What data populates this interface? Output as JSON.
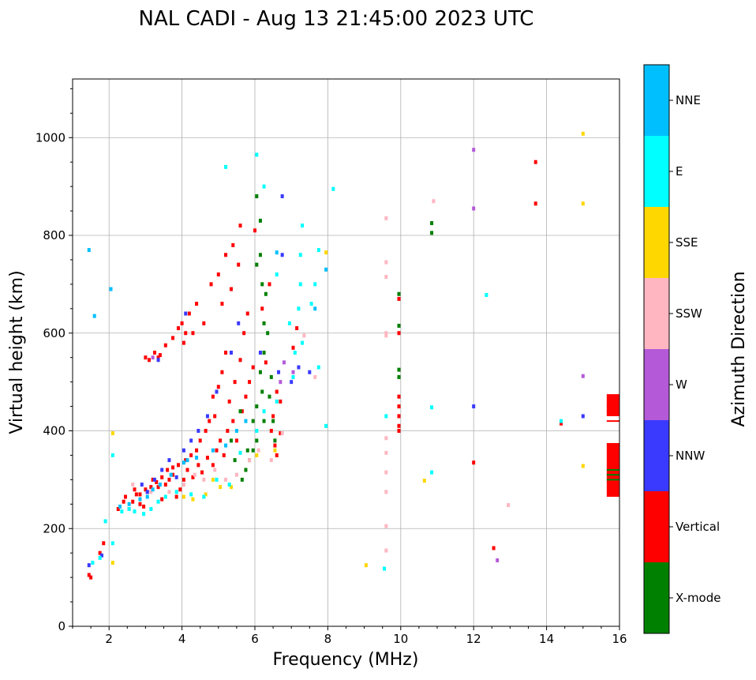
{
  "chart_data": {
    "type": "scatter",
    "title": "NAL CADI - Aug 13 21:45:00 2023 UTC",
    "xlabel": "Frequency (MHz)",
    "ylabel": "Virtual height (km)",
    "xlim": [
      1,
      16
    ],
    "ylim": [
      0,
      1120
    ],
    "x_ticks": [
      2,
      4,
      6,
      8,
      10,
      12,
      14,
      16
    ],
    "y_ticks": [
      0,
      200,
      400,
      600,
      800,
      1000
    ],
    "grid": true,
    "colorbar": {
      "label": "Azimuth Direction",
      "categories": [
        {
          "name": "X-mode",
          "color": "#008000"
        },
        {
          "name": "Vertical",
          "color": "#ff0000"
        },
        {
          "name": "NNW",
          "color": "#3a3aff"
        },
        {
          "name": "W",
          "color": "#b45ad8"
        },
        {
          "name": "SSW",
          "color": "#ffb6c1"
        },
        {
          "name": "SSE",
          "color": "#ffd700"
        },
        {
          "name": "E",
          "color": "#00ffff"
        },
        {
          "name": "NNE",
          "color": "#00bfff"
        }
      ]
    },
    "series": [
      {
        "name": "Vertical",
        "color": "#ff0000",
        "points": [
          [
            1.45,
            105
          ],
          [
            1.5,
            100
          ],
          [
            1.75,
            150
          ],
          [
            1.85,
            170
          ],
          [
            2.25,
            240
          ],
          [
            2.4,
            255
          ],
          [
            2.45,
            265
          ],
          [
            2.55,
            240
          ],
          [
            2.65,
            255
          ],
          [
            2.75,
            270
          ],
          [
            2.85,
            250
          ],
          [
            2.95,
            245
          ],
          [
            3.05,
            275
          ],
          [
            3.2,
            300
          ],
          [
            3.35,
            285
          ],
          [
            3.45,
            260
          ],
          [
            3.55,
            290
          ],
          [
            3.65,
            300
          ],
          [
            3.75,
            310
          ],
          [
            3.85,
            265
          ],
          [
            3.95,
            280
          ],
          [
            4.05,
            300
          ],
          [
            4.15,
            320
          ],
          [
            4.3,
            305
          ],
          [
            4.45,
            330
          ],
          [
            4.55,
            315
          ],
          [
            4.7,
            345
          ],
          [
            4.85,
            330
          ],
          [
            4.95,
            360
          ],
          [
            5.05,
            380
          ],
          [
            5.15,
            350
          ],
          [
            5.25,
            400
          ],
          [
            5.4,
            420
          ],
          [
            5.5,
            380
          ],
          [
            5.65,
            440
          ],
          [
            5.75,
            470
          ],
          [
            5.85,
            500
          ],
          [
            5.95,
            530
          ],
          [
            5.3,
            460
          ],
          [
            5.45,
            500
          ],
          [
            5.6,
            545
          ],
          [
            5.7,
            600
          ],
          [
            5.8,
            640
          ],
          [
            5.2,
            560
          ],
          [
            5.1,
            520
          ],
          [
            5.0,
            490
          ],
          [
            4.85,
            470
          ],
          [
            4.9,
            430
          ],
          [
            4.75,
            420
          ],
          [
            4.65,
            400
          ],
          [
            4.5,
            380
          ],
          [
            4.4,
            360
          ],
          [
            4.25,
            350
          ],
          [
            4.1,
            340
          ],
          [
            3.9,
            330
          ],
          [
            3.75,
            325
          ],
          [
            3.6,
            320
          ],
          [
            3.45,
            305
          ],
          [
            3.3,
            295
          ],
          [
            3.15,
            285
          ],
          [
            3.0,
            280
          ],
          [
            2.85,
            270
          ],
          [
            2.7,
            280
          ],
          [
            3.4,
            555
          ],
          [
            3.55,
            575
          ],
          [
            3.75,
            590
          ],
          [
            3.9,
            610
          ],
          [
            4.0,
            620
          ],
          [
            4.1,
            600
          ],
          [
            4.2,
            640
          ],
          [
            4.4,
            660
          ],
          [
            4.6,
            620
          ],
          [
            4.8,
            700
          ],
          [
            5.0,
            720
          ],
          [
            5.2,
            760
          ],
          [
            5.4,
            780
          ],
          [
            5.6,
            820
          ],
          [
            6.0,
            810
          ],
          [
            5.1,
            660
          ],
          [
            5.35,
            690
          ],
          [
            5.55,
            740
          ],
          [
            3.0,
            550
          ],
          [
            3.1,
            545
          ],
          [
            3.25,
            560
          ],
          [
            3.35,
            550
          ],
          [
            4.05,
            580
          ],
          [
            4.3,
            600
          ],
          [
            6.2,
            650
          ],
          [
            6.4,
            700
          ],
          [
            6.3,
            540
          ],
          [
            6.6,
            480
          ],
          [
            6.5,
            430
          ],
          [
            6.7,
            460
          ],
          [
            7.05,
            570
          ],
          [
            7.15,
            610
          ],
          [
            6.45,
            400
          ],
          [
            6.55,
            370
          ],
          [
            6.6,
            350
          ],
          [
            6.7,
            395
          ],
          [
            9.95,
            670
          ],
          [
            9.95,
            600
          ],
          [
            9.95,
            470
          ],
          [
            9.95,
            450
          ],
          [
            9.95,
            430
          ],
          [
            9.95,
            410
          ],
          [
            9.95,
            400
          ],
          [
            12.0,
            335
          ],
          [
            12.55,
            160
          ],
          [
            13.7,
            950
          ],
          [
            13.7,
            865
          ],
          [
            14.4,
            415
          ]
        ]
      },
      {
        "name": "X-mode",
        "color": "#008000",
        "points": [
          [
            5.65,
            300
          ],
          [
            5.75,
            320
          ],
          [
            5.85,
            340
          ],
          [
            5.95,
            360
          ],
          [
            6.05,
            380
          ],
          [
            5.95,
            420
          ],
          [
            6.05,
            450
          ],
          [
            6.2,
            480
          ],
          [
            6.15,
            520
          ],
          [
            6.25,
            560
          ],
          [
            6.25,
            620
          ],
          [
            6.3,
            680
          ],
          [
            6.2,
            700
          ],
          [
            6.05,
            740
          ],
          [
            6.15,
            760
          ],
          [
            6.35,
            600
          ],
          [
            6.5,
            420
          ],
          [
            6.55,
            380
          ],
          [
            6.15,
            830
          ],
          [
            6.05,
            880
          ],
          [
            5.6,
            440
          ],
          [
            5.35,
            380
          ],
          [
            5.45,
            340
          ],
          [
            6.4,
            470
          ],
          [
            6.25,
            420
          ],
          [
            5.8,
            360
          ],
          [
            6.45,
            510
          ],
          [
            9.95,
            525
          ],
          [
            9.95,
            510
          ],
          [
            9.95,
            615
          ],
          [
            9.95,
            680
          ],
          [
            10.85,
            825
          ],
          [
            10.85,
            805
          ]
        ]
      },
      {
        "name": "NNW",
        "color": "#3a3aff",
        "points": [
          [
            1.45,
            125
          ],
          [
            1.8,
            145
          ],
          [
            2.9,
            290
          ],
          [
            3.05,
            275
          ],
          [
            3.25,
            300
          ],
          [
            3.45,
            320
          ],
          [
            3.65,
            340
          ],
          [
            3.85,
            305
          ],
          [
            4.05,
            360
          ],
          [
            4.25,
            380
          ],
          [
            4.45,
            400
          ],
          [
            4.7,
            430
          ],
          [
            4.95,
            480
          ],
          [
            5.35,
            560
          ],
          [
            5.55,
            620
          ],
          [
            6.15,
            560
          ],
          [
            6.65,
            520
          ],
          [
            6.75,
            760
          ],
          [
            6.75,
            880
          ],
          [
            7.0,
            500
          ],
          [
            7.2,
            530
          ],
          [
            7.5,
            520
          ],
          [
            4.1,
            640
          ],
          [
            3.35,
            545
          ],
          [
            12.0,
            450
          ],
          [
            15.0,
            430
          ]
        ]
      },
      {
        "name": "W",
        "color": "#b45ad8",
        "points": [
          [
            6.7,
            500
          ],
          [
            6.8,
            540
          ],
          [
            7.05,
            520
          ],
          [
            3.2,
            550
          ],
          [
            12.0,
            975
          ],
          [
            12.0,
            855
          ],
          [
            12.65,
            135
          ],
          [
            15.0,
            512
          ]
        ]
      },
      {
        "name": "SSW",
        "color": "#ffb6c1",
        "points": [
          [
            2.65,
            290
          ],
          [
            3.15,
            275
          ],
          [
            3.65,
            275
          ],
          [
            4.05,
            290
          ],
          [
            4.35,
            310
          ],
          [
            4.6,
            300
          ],
          [
            4.9,
            320
          ],
          [
            5.2,
            300
          ],
          [
            5.5,
            310
          ],
          [
            5.85,
            340
          ],
          [
            6.1,
            360
          ],
          [
            6.45,
            340
          ],
          [
            6.75,
            395
          ],
          [
            7.35,
            595
          ],
          [
            7.65,
            510
          ],
          [
            9.6,
            835
          ],
          [
            9.6,
            745
          ],
          [
            9.6,
            715
          ],
          [
            9.6,
            600
          ],
          [
            9.6,
            595
          ],
          [
            9.6,
            385
          ],
          [
            9.6,
            355
          ],
          [
            9.6,
            315
          ],
          [
            9.6,
            275
          ],
          [
            9.6,
            205
          ],
          [
            9.6,
            155
          ],
          [
            10.9,
            870
          ],
          [
            12.95,
            248
          ]
        ]
      },
      {
        "name": "SSE",
        "color": "#ffd700",
        "points": [
          [
            2.1,
            395
          ],
          [
            2.1,
            130
          ],
          [
            4.05,
            265
          ],
          [
            4.3,
            260
          ],
          [
            4.65,
            270
          ],
          [
            4.85,
            300
          ],
          [
            5.05,
            285
          ],
          [
            5.35,
            285
          ],
          [
            6.05,
            350
          ],
          [
            6.55,
            360
          ],
          [
            7.95,
            765
          ],
          [
            9.05,
            125
          ],
          [
            10.65,
            298
          ],
          [
            15.0,
            1008
          ],
          [
            15.0,
            865
          ],
          [
            15.0,
            328
          ]
        ]
      },
      {
        "name": "E",
        "color": "#00ffff",
        "points": [
          [
            1.55,
            130
          ],
          [
            1.75,
            140
          ],
          [
            1.9,
            215
          ],
          [
            2.1,
            170
          ],
          [
            2.1,
            350
          ],
          [
            2.35,
            235
          ],
          [
            2.55,
            240
          ],
          [
            2.7,
            235
          ],
          [
            2.95,
            230
          ],
          [
            3.15,
            240
          ],
          [
            3.35,
            255
          ],
          [
            3.55,
            265
          ],
          [
            3.85,
            275
          ],
          [
            4.25,
            270
          ],
          [
            4.6,
            265
          ],
          [
            4.95,
            300
          ],
          [
            5.3,
            290
          ],
          [
            5.6,
            355
          ],
          [
            6.05,
            400
          ],
          [
            6.25,
            440
          ],
          [
            6.6,
            460
          ],
          [
            6.95,
            620
          ],
          [
            7.1,
            560
          ],
          [
            7.2,
            650
          ],
          [
            7.25,
            700
          ],
          [
            7.25,
            760
          ],
          [
            7.3,
            820
          ],
          [
            7.75,
            770
          ],
          [
            7.65,
            700
          ],
          [
            7.55,
            660
          ],
          [
            7.05,
            510
          ],
          [
            7.3,
            580
          ],
          [
            6.6,
            720
          ],
          [
            6.05,
            965
          ],
          [
            6.25,
            900
          ],
          [
            5.2,
            940
          ],
          [
            7.75,
            530
          ],
          [
            7.95,
            410
          ],
          [
            8.15,
            895
          ],
          [
            9.55,
            118
          ],
          [
            9.6,
            430
          ],
          [
            10.85,
            315
          ],
          [
            10.85,
            448
          ],
          [
            12.35,
            678
          ],
          [
            14.4,
            420
          ]
        ]
      },
      {
        "name": "NNE",
        "color": "#00bfff",
        "points": [
          [
            1.45,
            770
          ],
          [
            1.6,
            635
          ],
          [
            2.05,
            690
          ],
          [
            2.3,
            245
          ],
          [
            2.55,
            250
          ],
          [
            2.85,
            260
          ],
          [
            3.05,
            265
          ],
          [
            3.4,
            290
          ],
          [
            3.7,
            310
          ],
          [
            4.05,
            335
          ],
          [
            4.4,
            345
          ],
          [
            4.85,
            360
          ],
          [
            5.2,
            370
          ],
          [
            5.5,
            400
          ],
          [
            5.75,
            420
          ],
          [
            7.65,
            650
          ],
          [
            7.95,
            730
          ],
          [
            4.15,
            340
          ],
          [
            3.2,
            280
          ],
          [
            6.6,
            765
          ]
        ]
      },
      {
        "name": "Vertical-bar",
        "color": "#ff0000",
        "bars": [
          [
            15.65,
            16.0,
            265,
            375
          ],
          [
            15.65,
            16.0,
            430,
            475
          ]
        ]
      },
      {
        "name": "X-mode-bar",
        "color": "#008000",
        "lines": [
          [
            15.65,
            16.0,
            300
          ],
          [
            15.65,
            16.0,
            310
          ],
          [
            15.65,
            16.0,
            320
          ]
        ]
      },
      {
        "name": "Vertical-lines",
        "color": "#ff0000",
        "lines": [
          [
            15.65,
            16.0,
            420
          ],
          [
            15.65,
            16.0,
            440
          ],
          [
            15.65,
            16.0,
            450
          ]
        ]
      }
    ]
  }
}
